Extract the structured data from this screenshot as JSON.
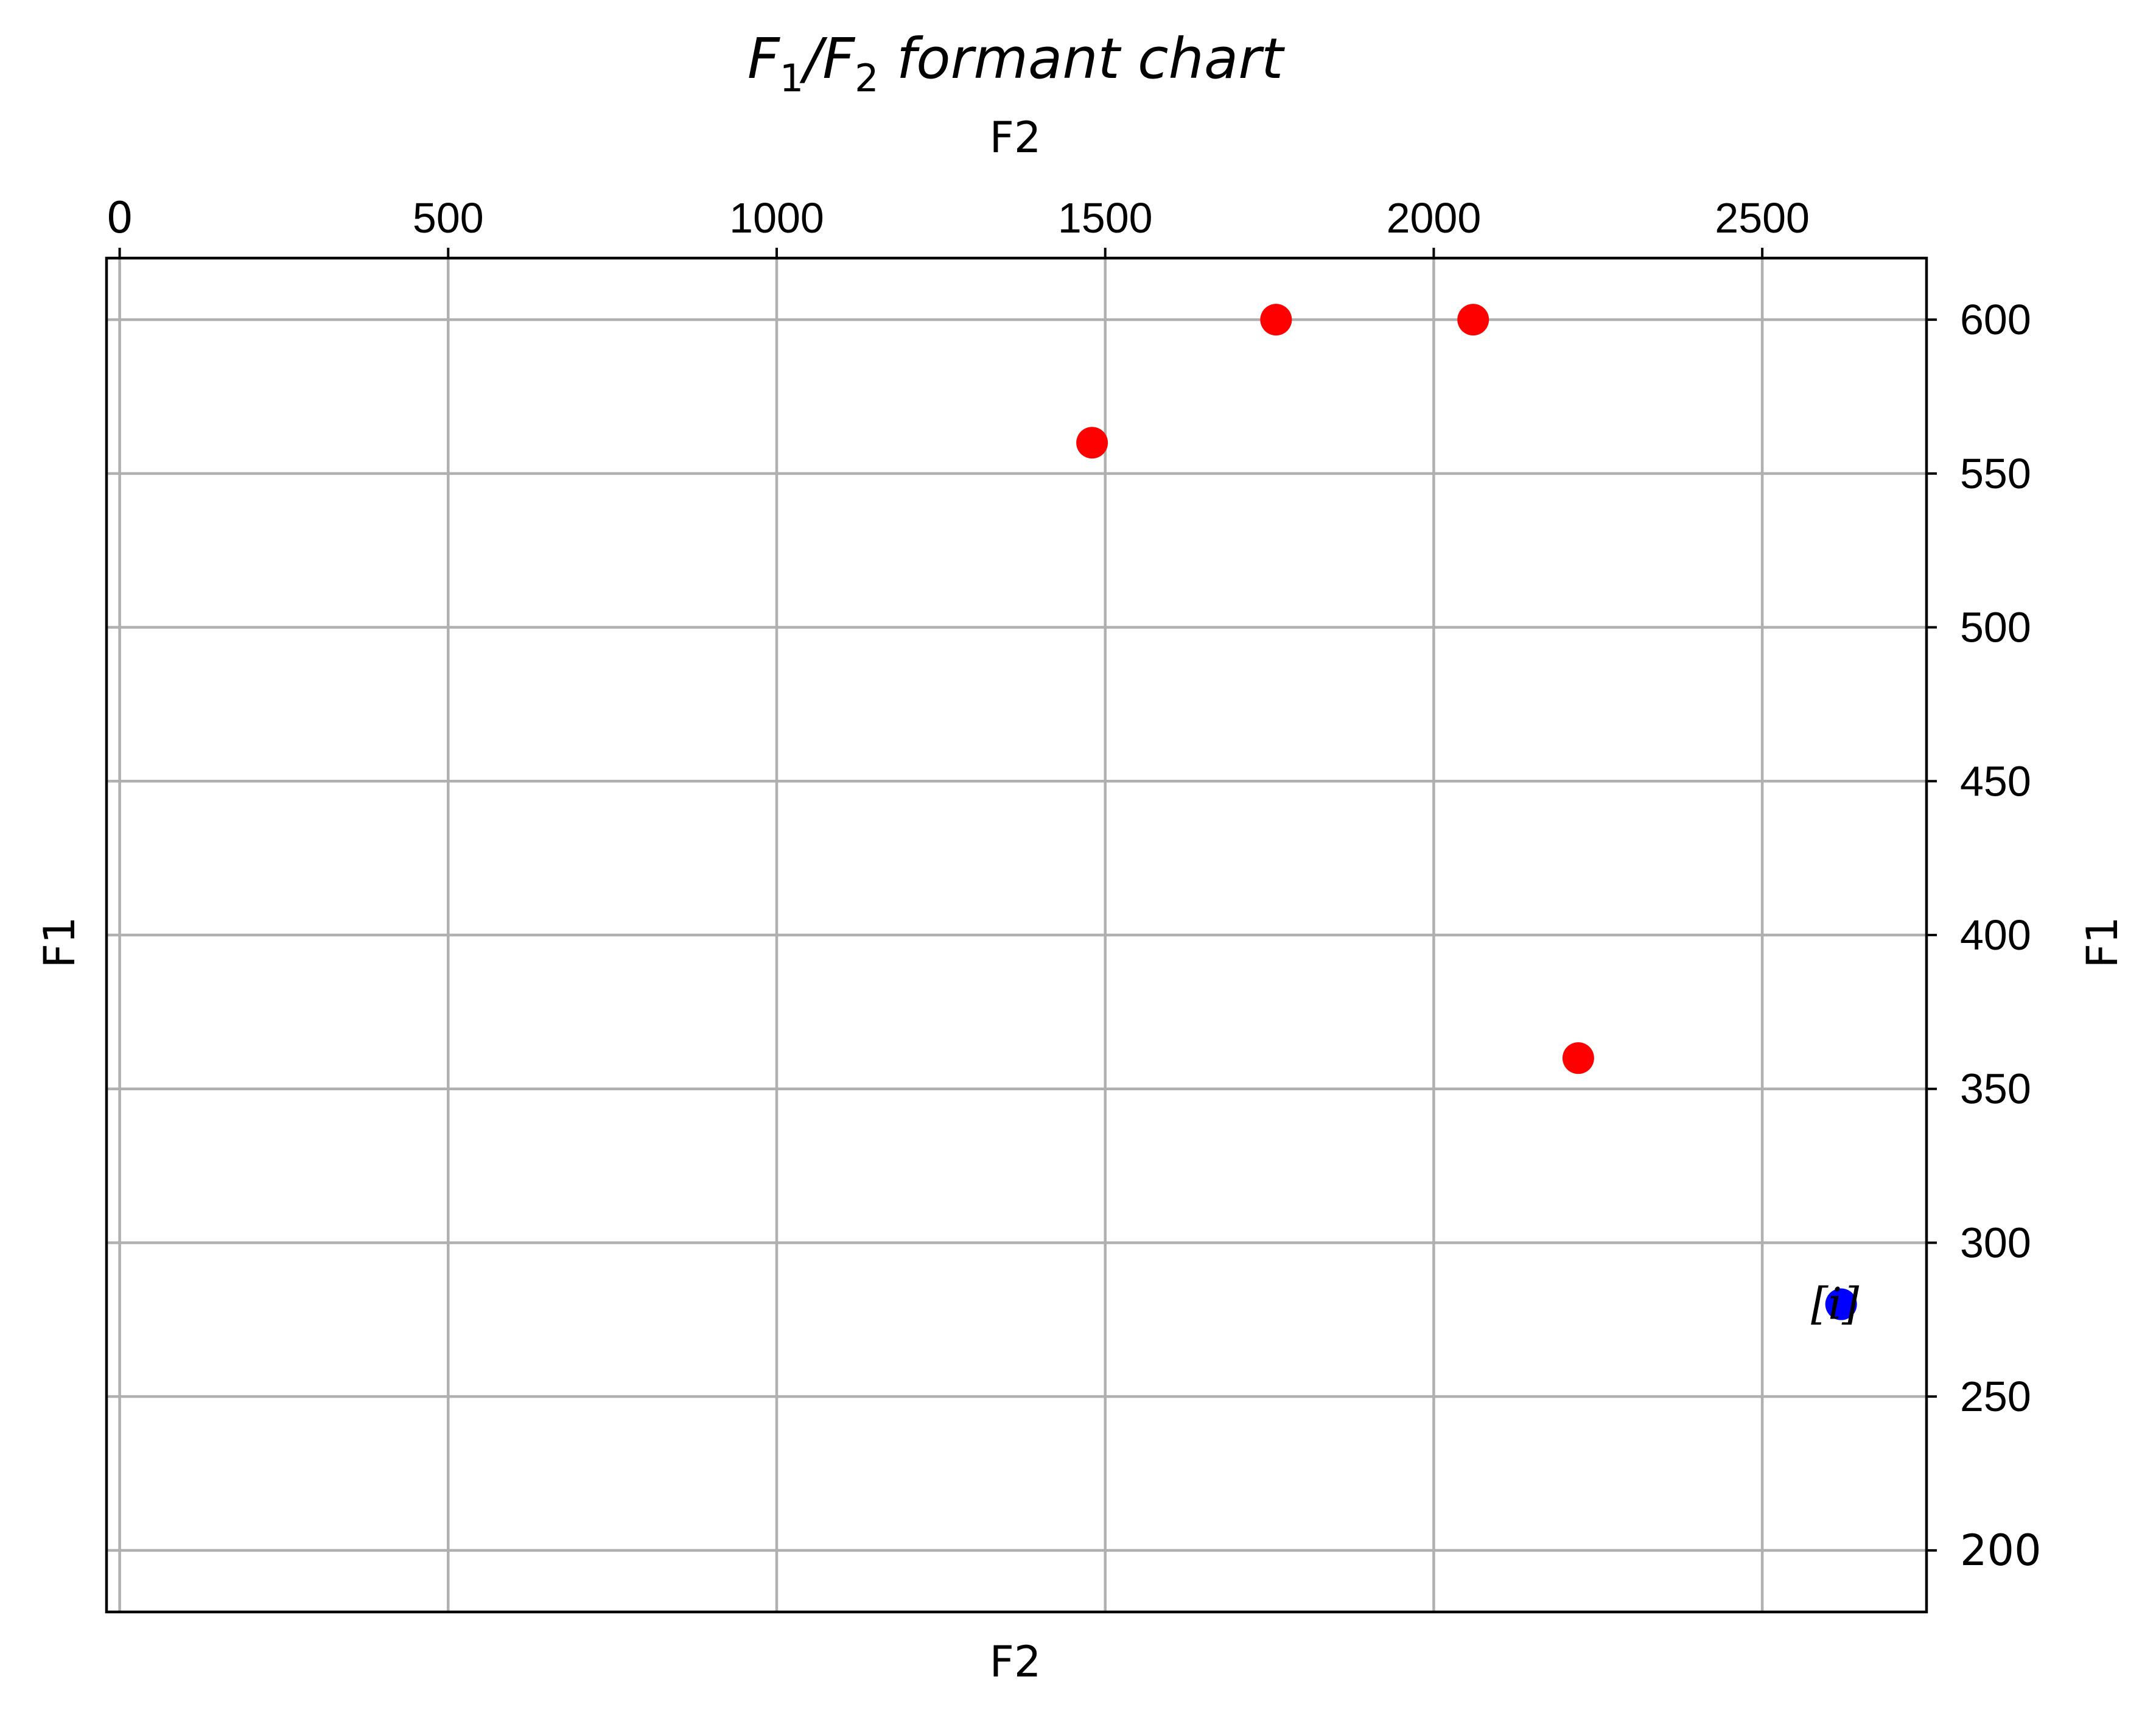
{
  "chart_data": {
    "type": "scatter",
    "title_main": "F",
    "title_sub1": "1",
    "title_mid": "/F",
    "title_sub2": "2",
    "title_rest": " formant chart",
    "xlabel": "F2",
    "ylabel": "F1",
    "x_top_label": "F2",
    "y_right_label": "F1",
    "xlim": [
      -20,
      2750
    ],
    "ylim": [
      180,
      620
    ],
    "x_inverted": false,
    "y_inverted": false,
    "x_axis_position": "top",
    "y_axis_position": "right",
    "grid": true,
    "xticks": [
      0,
      500,
      1000,
      1500,
      2000,
      2500
    ],
    "xtick_labels": [
      "0",
      "500",
      "1000",
      "1500",
      "2000",
      "2500"
    ],
    "yticks": [
      200,
      250,
      300,
      350,
      400,
      450,
      500,
      550,
      600
    ],
    "ytick_labels": [
      "200",
      "250",
      "300",
      "350",
      "400",
      "450",
      "500",
      "550",
      "600"
    ],
    "series": [
      {
        "color": "#ff0000",
        "points": [
          {
            "x": 1480,
            "y": 560
          },
          {
            "x": 1760,
            "y": 600
          },
          {
            "x": 2060,
            "y": 600
          },
          {
            "x": 2220,
            "y": 360
          }
        ]
      },
      {
        "color": "#0000ff",
        "points": [
          {
            "x": 2620,
            "y": 280
          }
        ]
      }
    ],
    "annotations": [
      {
        "text": "[i]",
        "x": 2620,
        "y": 280
      }
    ]
  }
}
